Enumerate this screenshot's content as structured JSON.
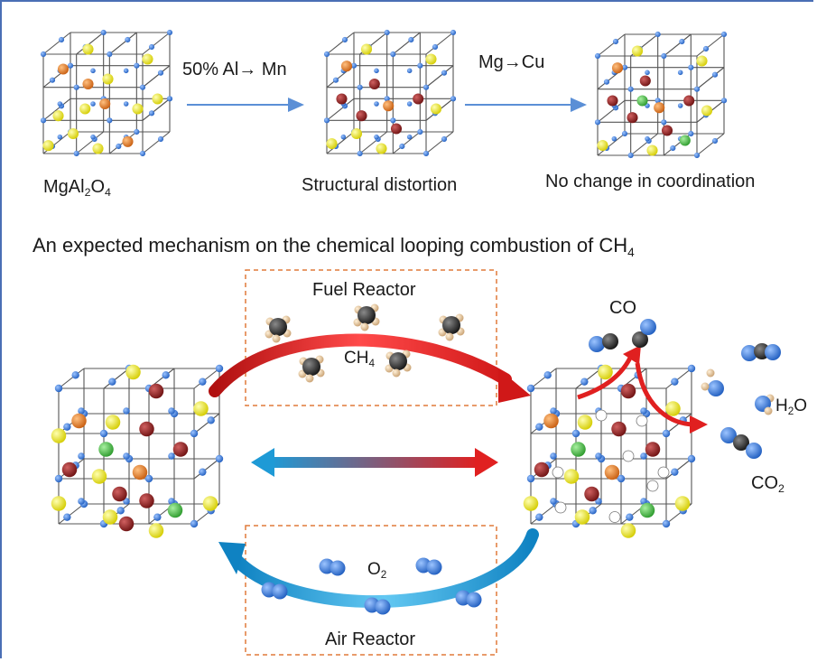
{
  "colors": {
    "frame": "#4a6fb5",
    "lattice_line": "#555555",
    "blue_atom": "#2f6fd0",
    "yellow_atom": "#e8e000",
    "orange_atom": "#e0781a",
    "maroon_atom": "#8a1e1e",
    "green_atom": "#3fb83f",
    "top_arrow": "#5b8fd6",
    "fuel_arrow": "#e02020",
    "air_arrow": "#1e9ad6",
    "reactor_box": "#e07a3a"
  },
  "top_row": {
    "left_label": {
      "main": "MgAl",
      "sub1": "2",
      "mid": "O",
      "sub2": "4"
    },
    "arrow1_label": "50% Al→ Mn",
    "middle_label": "Structural distortion",
    "arrow2_label": "Mg→Cu",
    "right_label": "No change in coordination"
  },
  "mechanism_title": {
    "main": "An expected mechanism on the chemical looping combustion of CH",
    "sub": "4"
  },
  "fuel_reactor": {
    "title": "Fuel Reactor",
    "species": {
      "main": "CH",
      "sub": "4"
    }
  },
  "air_reactor": {
    "title": "Air Reactor",
    "species": {
      "main": "O",
      "sub": "2"
    }
  },
  "products": {
    "co": "CO",
    "h2o": {
      "a": "H",
      "sub": "2",
      "b": "O"
    },
    "co2": {
      "main": "CO",
      "sub": "2"
    }
  }
}
